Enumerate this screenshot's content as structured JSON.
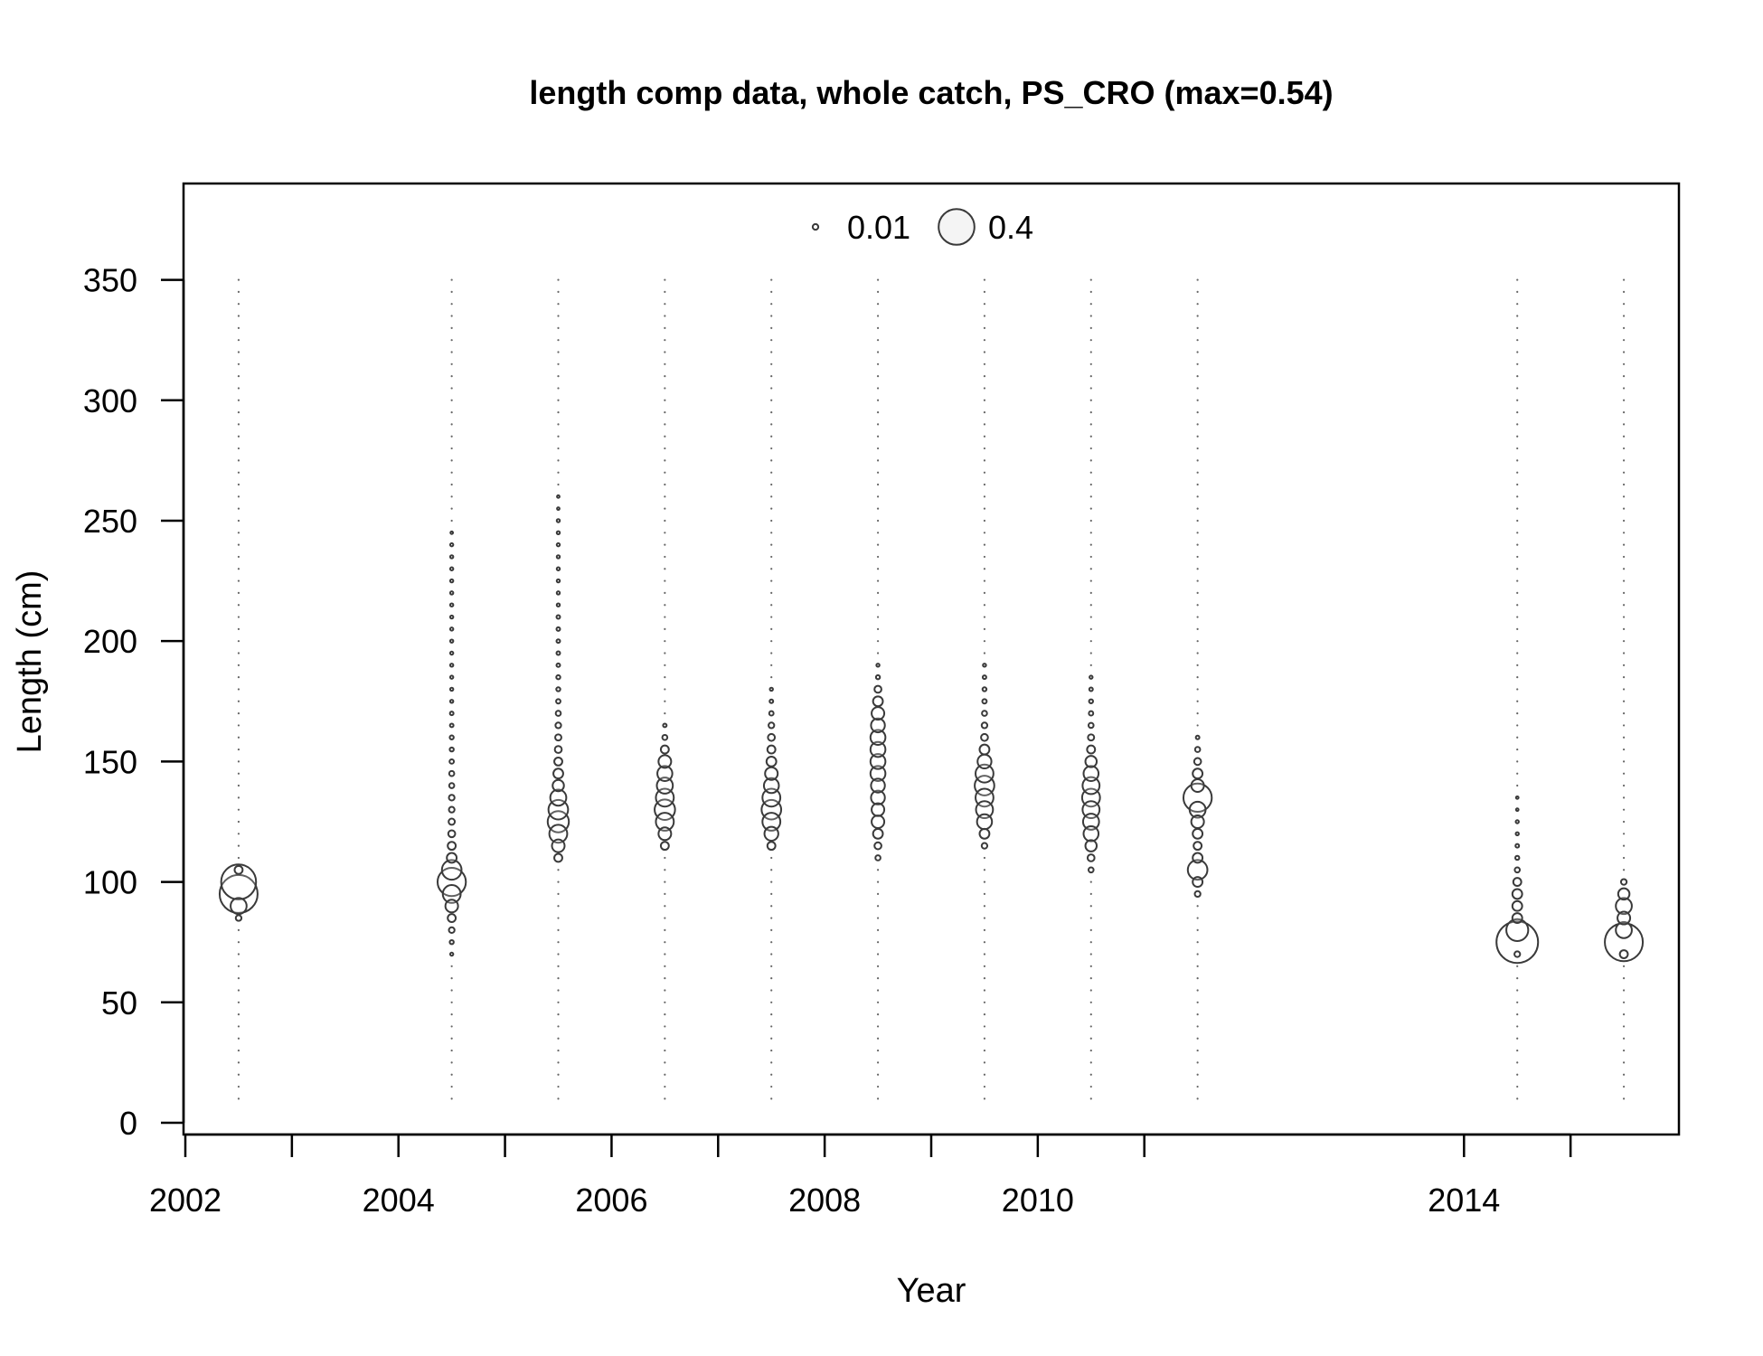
{
  "chart_data": {
    "type": "scatter",
    "title": "length comp data, whole catch, PS_CRO (max=0.54)",
    "xlabel": "Year",
    "ylabel": "Length (cm)",
    "xlim": [
      2002,
      2016
    ],
    "ylim": [
      0,
      390
    ],
    "x_ticks": [
      2002,
      2003,
      2004,
      2005,
      2006,
      2007,
      2008,
      2009,
      2010,
      2011,
      2014,
      2015
    ],
    "x_tick_labels": [
      "2002",
      "",
      "2004",
      "",
      "2006",
      "",
      "2008",
      "",
      "2010",
      "",
      "2014",
      ""
    ],
    "y_ticks": [
      0,
      50,
      100,
      150,
      200,
      250,
      300,
      350
    ],
    "y_tick_labels": [
      "0",
      "50",
      "100",
      "150",
      "200",
      "250",
      "300",
      "350"
    ],
    "grid": false,
    "legend": {
      "placement": "top-center",
      "entries": [
        {
          "label": "0.01",
          "value": 0.01
        },
        {
          "label": "0.4",
          "value": 0.4
        }
      ]
    },
    "max_proportion": 0.54,
    "bin_min": 10,
    "bin_max": 350,
    "bin_width": 5,
    "series": [
      {
        "year": 2002.5,
        "points": [
          [
            85,
            0.01
          ],
          [
            90,
            0.08
          ],
          [
            95,
            0.45
          ],
          [
            100,
            0.38
          ],
          [
            105,
            0.02
          ]
        ]
      },
      {
        "year": 2004.5,
        "points": [
          [
            70,
            0.003
          ],
          [
            75,
            0.005
          ],
          [
            80,
            0.01
          ],
          [
            85,
            0.02
          ],
          [
            90,
            0.05
          ],
          [
            95,
            0.1
          ],
          [
            100,
            0.25
          ],
          [
            105,
            0.12
          ],
          [
            110,
            0.03
          ],
          [
            115,
            0.02
          ],
          [
            120,
            0.015
          ],
          [
            125,
            0.012
          ],
          [
            130,
            0.01
          ],
          [
            135,
            0.01
          ],
          [
            140,
            0.008
          ],
          [
            145,
            0.008
          ],
          [
            150,
            0.006
          ],
          [
            155,
            0.005
          ],
          [
            160,
            0.005
          ],
          [
            165,
            0.004
          ],
          [
            170,
            0.004
          ],
          [
            175,
            0.003
          ],
          [
            180,
            0.003
          ],
          [
            185,
            0.003
          ],
          [
            190,
            0.003
          ],
          [
            195,
            0.003
          ],
          [
            200,
            0.003
          ],
          [
            205,
            0.003
          ],
          [
            210,
            0.003
          ],
          [
            215,
            0.003
          ],
          [
            220,
            0.003
          ],
          [
            225,
            0.003
          ],
          [
            230,
            0.003
          ],
          [
            235,
            0.003
          ],
          [
            240,
            0.003
          ],
          [
            245,
            0.002
          ]
        ]
      },
      {
        "year": 2005.5,
        "points": [
          [
            110,
            0.02
          ],
          [
            115,
            0.05
          ],
          [
            120,
            0.1
          ],
          [
            125,
            0.14
          ],
          [
            130,
            0.12
          ],
          [
            135,
            0.08
          ],
          [
            140,
            0.04
          ],
          [
            145,
            0.03
          ],
          [
            150,
            0.02
          ],
          [
            155,
            0.015
          ],
          [
            160,
            0.012
          ],
          [
            165,
            0.01
          ],
          [
            170,
            0.008
          ],
          [
            175,
            0.006
          ],
          [
            180,
            0.005
          ],
          [
            185,
            0.005
          ],
          [
            190,
            0.004
          ],
          [
            195,
            0.004
          ],
          [
            200,
            0.004
          ],
          [
            205,
            0.004
          ],
          [
            210,
            0.004
          ],
          [
            215,
            0.003
          ],
          [
            220,
            0.003
          ],
          [
            225,
            0.003
          ],
          [
            230,
            0.003
          ],
          [
            235,
            0.003
          ],
          [
            240,
            0.003
          ],
          [
            245,
            0.003
          ],
          [
            250,
            0.003
          ],
          [
            255,
            0.002
          ],
          [
            260,
            0.002
          ]
        ]
      },
      {
        "year": 2006.5,
        "points": [
          [
            115,
            0.02
          ],
          [
            120,
            0.05
          ],
          [
            125,
            0.1
          ],
          [
            130,
            0.13
          ],
          [
            135,
            0.1
          ],
          [
            140,
            0.08
          ],
          [
            145,
            0.07
          ],
          [
            150,
            0.05
          ],
          [
            155,
            0.02
          ],
          [
            160,
            0.008
          ],
          [
            165,
            0.004
          ]
        ]
      },
      {
        "year": 2007.5,
        "points": [
          [
            115,
            0.02
          ],
          [
            120,
            0.06
          ],
          [
            125,
            0.1
          ],
          [
            130,
            0.12
          ],
          [
            135,
            0.1
          ],
          [
            140,
            0.07
          ],
          [
            145,
            0.05
          ],
          [
            150,
            0.03
          ],
          [
            155,
            0.02
          ],
          [
            160,
            0.015
          ],
          [
            165,
            0.01
          ],
          [
            170,
            0.006
          ],
          [
            175,
            0.004
          ],
          [
            180,
            0.003
          ]
        ]
      },
      {
        "year": 2008.5,
        "points": [
          [
            110,
            0.008
          ],
          [
            115,
            0.015
          ],
          [
            120,
            0.03
          ],
          [
            125,
            0.05
          ],
          [
            130,
            0.05
          ],
          [
            135,
            0.06
          ],
          [
            140,
            0.06
          ],
          [
            145,
            0.07
          ],
          [
            150,
            0.07
          ],
          [
            155,
            0.07
          ],
          [
            160,
            0.07
          ],
          [
            165,
            0.06
          ],
          [
            170,
            0.05
          ],
          [
            175,
            0.03
          ],
          [
            180,
            0.015
          ],
          [
            185,
            0.005
          ],
          [
            190,
            0.003
          ]
        ]
      },
      {
        "year": 2009.5,
        "points": [
          [
            115,
            0.01
          ],
          [
            120,
            0.03
          ],
          [
            125,
            0.07
          ],
          [
            130,
            0.09
          ],
          [
            135,
            0.1
          ],
          [
            140,
            0.12
          ],
          [
            145,
            0.1
          ],
          [
            150,
            0.06
          ],
          [
            155,
            0.03
          ],
          [
            160,
            0.015
          ],
          [
            165,
            0.01
          ],
          [
            170,
            0.008
          ],
          [
            175,
            0.006
          ],
          [
            180,
            0.005
          ],
          [
            185,
            0.004
          ],
          [
            190,
            0.003
          ]
        ]
      },
      {
        "year": 2010.5,
        "points": [
          [
            105,
            0.008
          ],
          [
            110,
            0.015
          ],
          [
            115,
            0.04
          ],
          [
            120,
            0.07
          ],
          [
            125,
            0.08
          ],
          [
            130,
            0.09
          ],
          [
            135,
            0.1
          ],
          [
            140,
            0.09
          ],
          [
            145,
            0.07
          ],
          [
            150,
            0.04
          ],
          [
            155,
            0.02
          ],
          [
            160,
            0.012
          ],
          [
            165,
            0.008
          ],
          [
            170,
            0.006
          ],
          [
            175,
            0.005
          ],
          [
            180,
            0.004
          ],
          [
            185,
            0.003
          ]
        ]
      },
      {
        "year": 2011.5,
        "points": [
          [
            95,
            0.01
          ],
          [
            100,
            0.03
          ],
          [
            105,
            0.12
          ],
          [
            110,
            0.03
          ],
          [
            115,
            0.02
          ],
          [
            120,
            0.03
          ],
          [
            125,
            0.05
          ],
          [
            130,
            0.08
          ],
          [
            135,
            0.25
          ],
          [
            140,
            0.05
          ],
          [
            145,
            0.03
          ],
          [
            150,
            0.015
          ],
          [
            155,
            0.008
          ],
          [
            160,
            0.004
          ]
        ]
      },
      {
        "year": 2014.5,
        "points": [
          [
            70,
            0.01
          ],
          [
            75,
            0.54
          ],
          [
            80,
            0.15
          ],
          [
            85,
            0.03
          ],
          [
            90,
            0.03
          ],
          [
            95,
            0.03
          ],
          [
            100,
            0.02
          ],
          [
            105,
            0.008
          ],
          [
            110,
            0.005
          ],
          [
            115,
            0.004
          ],
          [
            120,
            0.003
          ],
          [
            125,
            0.003
          ],
          [
            130,
            0.002
          ],
          [
            135,
            0.002
          ]
        ]
      },
      {
        "year": 2015.5,
        "points": [
          [
            70,
            0.02
          ],
          [
            75,
            0.45
          ],
          [
            80,
            0.08
          ],
          [
            85,
            0.05
          ],
          [
            90,
            0.08
          ],
          [
            95,
            0.04
          ],
          [
            100,
            0.01
          ]
        ]
      }
    ]
  }
}
